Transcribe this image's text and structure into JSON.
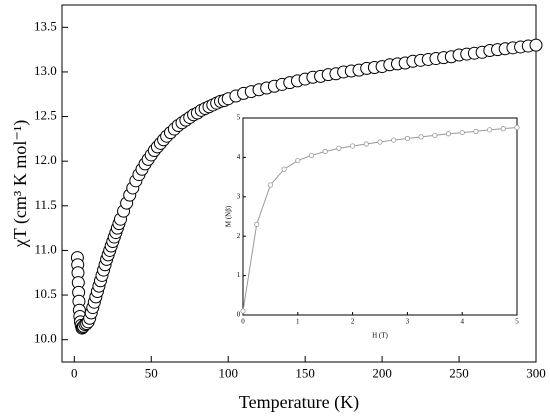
{
  "chart_data": [
    {
      "type": "scatter",
      "x_label": "Temperature (K)",
      "y_label": "χT (cm³ K mol⁻¹)",
      "color": "#000000",
      "x": [
        2,
        2.2,
        2.4,
        2.6,
        2.8,
        3,
        3.3,
        3.6,
        4,
        4.5,
        5,
        5.5,
        6,
        7,
        8,
        9,
        10,
        11,
        12,
        13,
        14,
        15,
        16,
        17,
        18,
        19,
        20,
        21,
        22,
        23,
        24,
        25,
        26,
        27,
        28,
        29,
        30,
        32,
        34,
        36,
        38,
        40,
        42,
        44,
        46,
        48,
        50,
        52,
        54,
        56,
        58,
        60,
        62.5,
        65,
        67.5,
        70,
        72.5,
        75,
        77.5,
        80,
        82.5,
        85,
        87.5,
        90,
        92.5,
        95,
        97.5,
        100,
        105,
        110,
        115,
        120,
        125,
        130,
        135,
        140,
        145,
        150,
        155,
        160,
        165,
        170,
        175,
        180,
        185,
        190,
        195,
        200,
        205,
        210,
        215,
        220,
        225,
        230,
        235,
        240,
        245,
        250,
        255,
        260,
        265,
        270,
        275,
        280,
        285,
        290,
        295,
        300
      ],
      "values": [
        10.92,
        10.84,
        10.75,
        10.64,
        10.53,
        10.43,
        10.33,
        10.26,
        10.2,
        10.16,
        10.13,
        10.14,
        10.15,
        10.17,
        10.18,
        10.2,
        10.24,
        10.3,
        10.36,
        10.42,
        10.48,
        10.54,
        10.6,
        10.66,
        10.72,
        10.78,
        10.84,
        10.9,
        10.95,
        11.0,
        11.05,
        11.1,
        11.15,
        11.2,
        11.25,
        11.3,
        11.35,
        11.44,
        11.53,
        11.62,
        11.7,
        11.78,
        11.85,
        11.91,
        11.97,
        12.02,
        12.07,
        12.12,
        12.16,
        12.2,
        12.24,
        12.28,
        12.32,
        12.36,
        12.4,
        12.43,
        12.46,
        12.49,
        12.52,
        12.54,
        12.57,
        12.59,
        12.61,
        12.63,
        12.65,
        12.67,
        12.68,
        12.7,
        12.73,
        12.76,
        12.78,
        12.8,
        12.82,
        12.84,
        12.86,
        12.88,
        12.9,
        12.92,
        12.94,
        12.95,
        12.97,
        12.98,
        13.0,
        13.01,
        13.02,
        13.04,
        13.05,
        13.06,
        13.08,
        13.09,
        13.1,
        13.12,
        13.13,
        13.14,
        13.15,
        13.16,
        13.17,
        13.19,
        13.2,
        13.21,
        13.22,
        13.24,
        13.25,
        13.26,
        13.27,
        13.28,
        13.29,
        13.3
      ],
      "xlim": [
        -8,
        300
      ],
      "xticks": [
        0,
        50,
        100,
        150,
        200,
        250,
        300
      ],
      "ylim": [
        9.75,
        13.75
      ],
      "yticks": [
        {
          "value": 10,
          "label": "10.0"
        },
        10.5,
        {
          "value": 11,
          "label": "11.0"
        },
        11.5,
        {
          "value": 12,
          "label": "12.0"
        },
        12.5,
        {
          "value": 13,
          "label": "13.0"
        },
        13.5
      ]
    },
    {
      "type": "scatter",
      "line": true,
      "x_label": "H (T)",
      "y_label": "M (Nβ)",
      "color": "#999999",
      "x": [
        0,
        0.25,
        0.5,
        0.75,
        1,
        1.25,
        1.5,
        1.75,
        2,
        2.25,
        2.5,
        2.75,
        3,
        3.25,
        3.5,
        3.75,
        4,
        4.25,
        4.5,
        4.75,
        5
      ],
      "values": [
        0.1,
        2.3,
        3.3,
        3.7,
        3.92,
        4.05,
        4.15,
        4.23,
        4.29,
        4.34,
        4.39,
        4.44,
        4.48,
        4.52,
        4.56,
        4.6,
        4.63,
        4.66,
        4.7,
        4.73,
        4.76
      ],
      "xlim": [
        0,
        5
      ],
      "xticks": [
        0,
        1,
        2,
        3,
        4,
        5
      ],
      "ylim": [
        0,
        5
      ],
      "yticks": [
        0,
        1,
        2,
        3,
        4,
        5
      ]
    }
  ]
}
